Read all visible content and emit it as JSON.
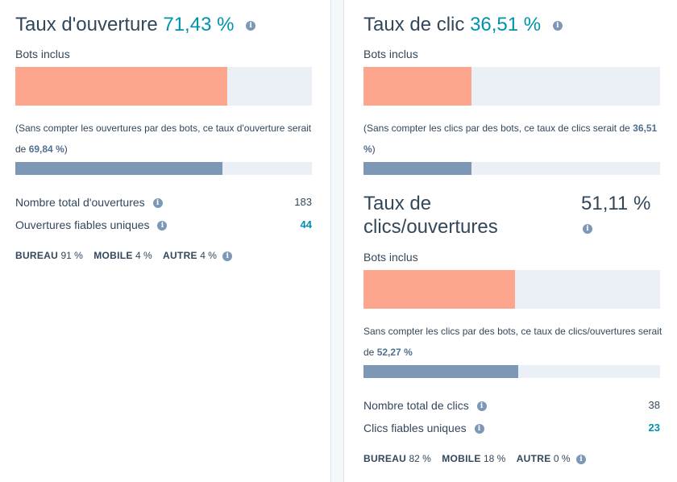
{
  "left": {
    "title": "Taux d'ouverture",
    "title_pct": "71,43 %",
    "bots_label": "Bots inclus",
    "bar_incl_fraction": 0.7143,
    "note_prefix": "(Sans compter les ouvertures par des bots, ce taux d'ouverture serait de",
    "note_value": "69,84 %",
    "note_suffix": ")",
    "bar_excl_fraction": 0.6984,
    "stats": [
      {
        "label": "Nombre total d'ouvertures",
        "value": "183"
      },
      {
        "label": "Ouvertures fiables uniques",
        "value": "44"
      }
    ],
    "devices": [
      {
        "label": "BUREAU",
        "value": "91 %"
      },
      {
        "label": "MOBILE",
        "value": "4 %"
      },
      {
        "label": "AUTRE",
        "value": "4 %"
      }
    ]
  },
  "right": {
    "title": "Taux de clic",
    "title_pct": "36,51 %",
    "bots_label": "Bots inclus",
    "bar_incl_fraction": 0.3651,
    "note_prefix": "(Sans compter les clics par des bots, ce taux de clics serait de",
    "note_value": "36,51 %",
    "note_suffix": ")",
    "bar_excl_fraction": 0.3651,
    "cto": {
      "title_line1": "Taux de",
      "title_line2": "clics/ouvertures",
      "pct": "51,11 %",
      "bots_label": "Bots inclus",
      "bar_incl_fraction": 0.5111,
      "note_prefix": "Sans compter les clics par des bots, ce taux de clics/ouvertures serait de",
      "note_value": "52,27 %",
      "bar_excl_fraction": 0.5227
    },
    "stats": [
      {
        "label": "Nombre total de clics",
        "value": "38"
      },
      {
        "label": "Clics fiables uniques",
        "value": "23"
      }
    ],
    "devices": [
      {
        "label": "BUREAU",
        "value": "82 %"
      },
      {
        "label": "MOBILE",
        "value": "18 %"
      },
      {
        "label": "AUTRE",
        "value": "0 %"
      }
    ]
  }
}
